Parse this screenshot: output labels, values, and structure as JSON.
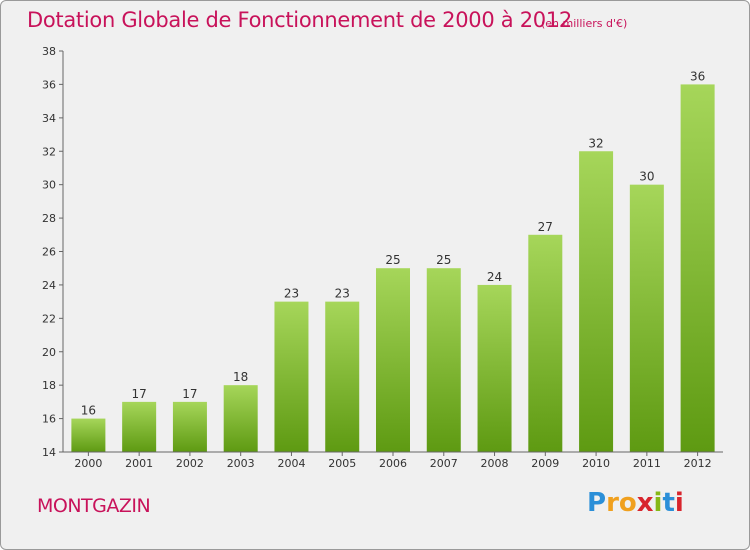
{
  "header": {
    "title": "Dotation Globale de Fonctionnement de 2000 à 2012",
    "unit": "(en milliers d'€)"
  },
  "footer": {
    "place": "MONTGAZIN",
    "logo": {
      "letters": [
        "P",
        "r",
        "o",
        "x",
        "i",
        "t",
        "i"
      ],
      "colors": [
        "#2b8fd8",
        "#f0a01e",
        "#f0a01e",
        "#d8252d",
        "#86b817",
        "#2b8fd8",
        "#d8252d"
      ]
    }
  },
  "colors": {
    "bar_light": "#a6d65a",
    "bar_dark": "#5e9a12",
    "accent": "#c8125a",
    "background": "#f0f0f0"
  },
  "chart_data": {
    "type": "bar",
    "categories": [
      "2000",
      "2001",
      "2002",
      "2003",
      "2004",
      "2005",
      "2006",
      "2007",
      "2008",
      "2009",
      "2010",
      "2011",
      "2012"
    ],
    "values": [
      16,
      17,
      17,
      18,
      23,
      23,
      25,
      25,
      24,
      27,
      32,
      30,
      36
    ],
    "title": "Dotation Globale de Fonctionnement de 2000 à 2012",
    "subtitle": "(en milliers d'€)",
    "xlabel": "",
    "ylabel": "",
    "ylim": [
      14,
      38
    ],
    "yticks": [
      14,
      16,
      18,
      20,
      22,
      24,
      26,
      28,
      30,
      32,
      34,
      36,
      38
    ],
    "grid": false,
    "legend": "none"
  }
}
